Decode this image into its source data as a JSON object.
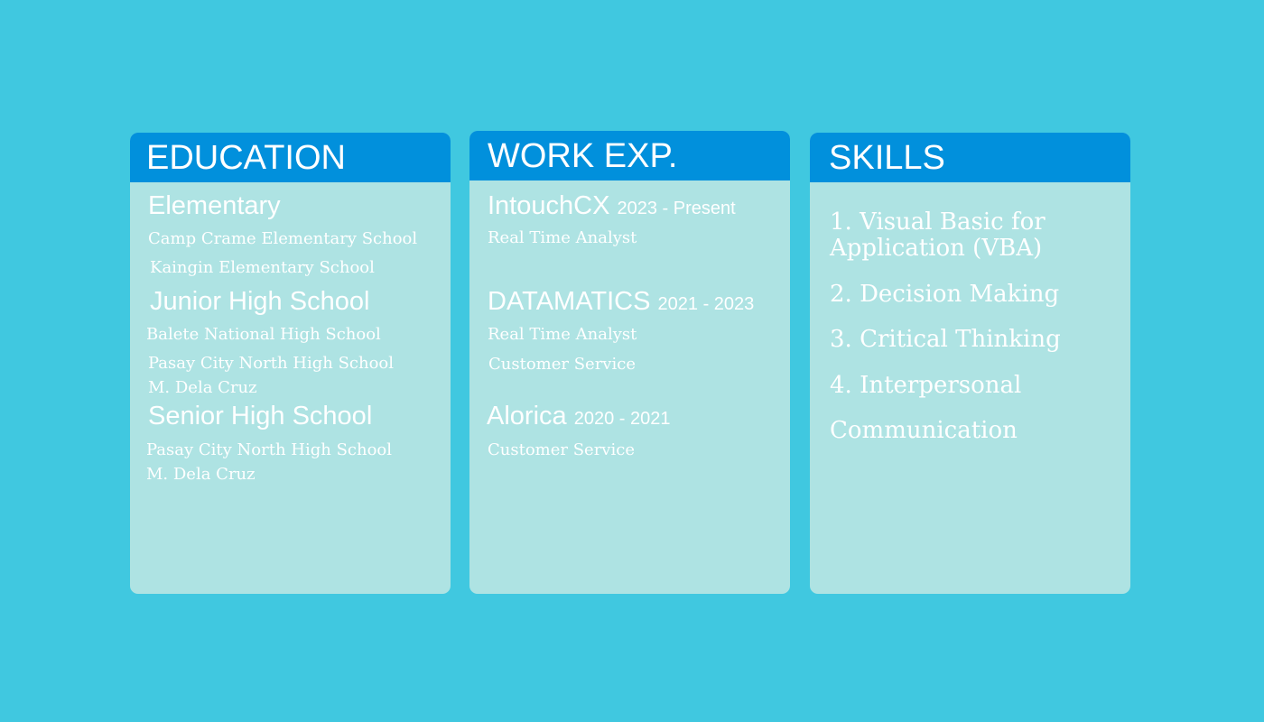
{
  "education": {
    "title": "EDUCATION",
    "elementary": {
      "heading": "Elementary",
      "schools": [
        "Camp Crame Elementary School",
        "Kaingin Elementary School"
      ]
    },
    "junior_high": {
      "heading": "Junior High School",
      "schools": [
        "Balete National High School",
        "Pasay City North High School",
        "M. Dela Cruz"
      ]
    },
    "senior_high": {
      "heading": "Senior High School",
      "schools": [
        "Pasay City North High School",
        "M. Dela Cruz"
      ]
    }
  },
  "work": {
    "title": "WORK EXP.",
    "jobs": [
      {
        "company": "IntouchCX",
        "dates": "2023 - Present",
        "roles": [
          "Real Time Analyst"
        ]
      },
      {
        "company": "DATAMATICS",
        "dates": "2021 - 2023",
        "roles": [
          "Real Time Analyst",
          "Customer Service"
        ]
      },
      {
        "company": "Alorica",
        "dates": "2020 - 2021",
        "roles": [
          "Customer Service"
        ]
      }
    ]
  },
  "skills": {
    "title": "SKILLS",
    "items": [
      "1. Visual Basic for",
      "Application (VBA)",
      "2. Decision Making",
      "3. Critical Thinking",
      "4. Interpersonal",
      "Communication"
    ]
  },
  "colors": {
    "background": "#40c8e0",
    "card": "#aee3e3",
    "header": "#0190dc",
    "text": "#ffffff"
  }
}
